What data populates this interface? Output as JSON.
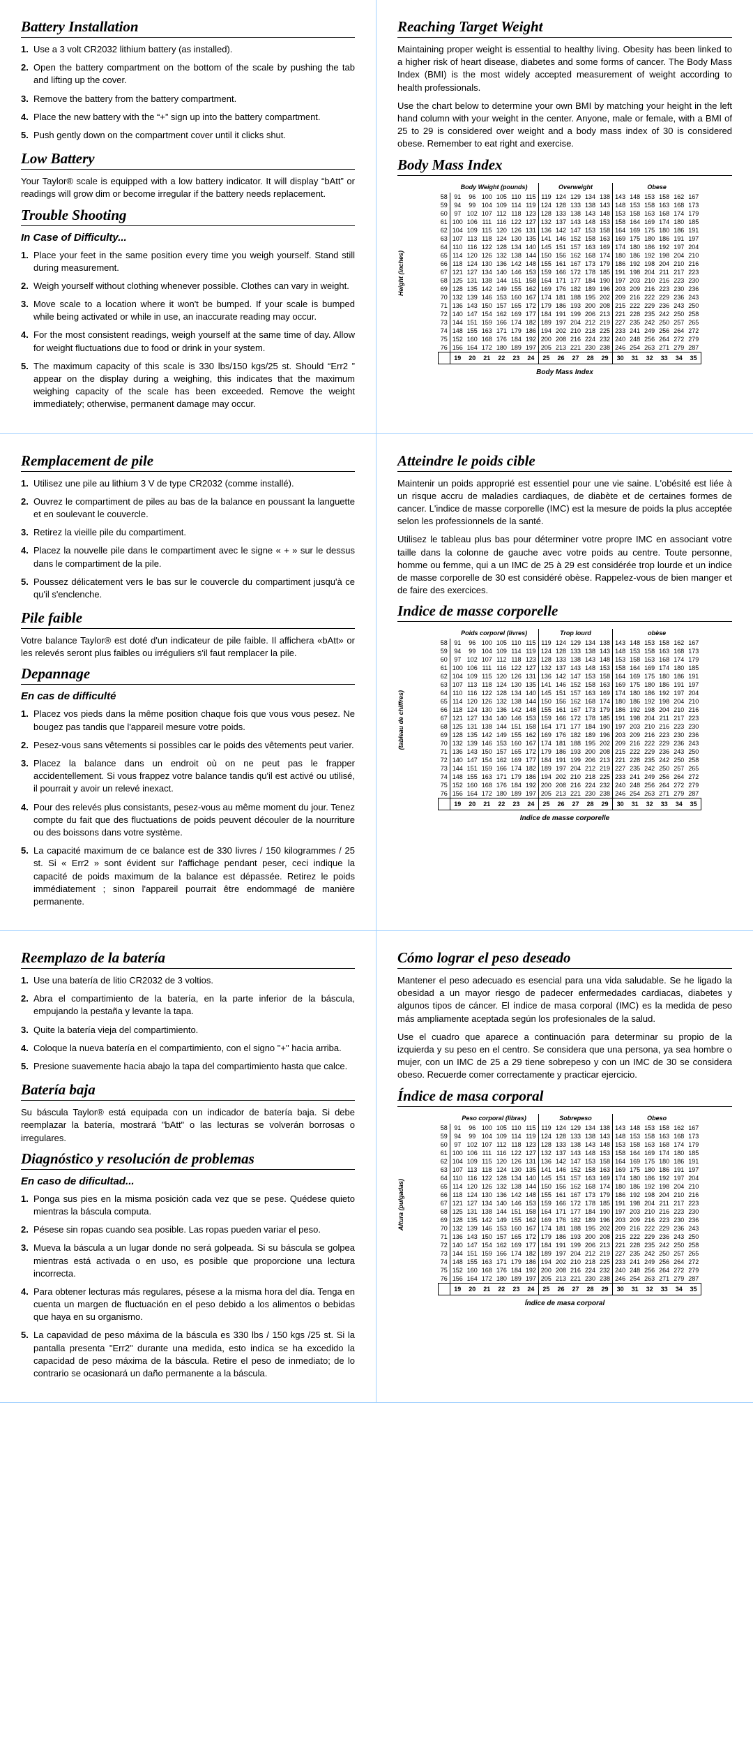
{
  "bmi": {
    "heights": [
      58,
      59,
      60,
      61,
      62,
      63,
      64,
      65,
      66,
      67,
      68,
      69,
      70,
      71,
      72,
      73,
      74,
      75,
      76
    ],
    "bw": [
      [
        91,
        96,
        100,
        105,
        110,
        115
      ],
      [
        94,
        99,
        104,
        109,
        114,
        119
      ],
      [
        97,
        102,
        107,
        112,
        118,
        123
      ],
      [
        100,
        106,
        111,
        116,
        122,
        127
      ],
      [
        104,
        109,
        115,
        120,
        126,
        131
      ],
      [
        107,
        113,
        118,
        124,
        130,
        135
      ],
      [
        110,
        116,
        122,
        128,
        134,
        140
      ],
      [
        114,
        120,
        126,
        132,
        138,
        144
      ],
      [
        118,
        124,
        130,
        136,
        142,
        148
      ],
      [
        121,
        127,
        134,
        140,
        146,
        153
      ],
      [
        125,
        131,
        138,
        144,
        151,
        158
      ],
      [
        128,
        135,
        142,
        149,
        155,
        162
      ],
      [
        132,
        139,
        146,
        153,
        160,
        167
      ],
      [
        136,
        143,
        150,
        157,
        165,
        172
      ],
      [
        140,
        147,
        154,
        162,
        169,
        177
      ],
      [
        144,
        151,
        159,
        166,
        174,
        182
      ],
      [
        148,
        155,
        163,
        171,
        179,
        186
      ],
      [
        152,
        160,
        168,
        176,
        184,
        192
      ],
      [
        156,
        164,
        172,
        180,
        189,
        197
      ]
    ],
    "ow": [
      [
        119,
        124,
        129,
        134,
        138
      ],
      [
        124,
        128,
        133,
        138,
        143
      ],
      [
        128,
        133,
        138,
        143,
        148
      ],
      [
        132,
        137,
        143,
        148,
        153
      ],
      [
        136,
        142,
        147,
        153,
        158
      ],
      [
        141,
        146,
        152,
        158,
        163
      ],
      [
        145,
        151,
        157,
        163,
        169
      ],
      [
        150,
        156,
        162,
        168,
        174
      ],
      [
        155,
        161,
        167,
        173,
        179
      ],
      [
        159,
        166,
        172,
        178,
        185
      ],
      [
        164,
        171,
        177,
        184,
        190
      ],
      [
        169,
        176,
        182,
        189,
        196
      ],
      [
        174,
        181,
        188,
        195,
        202
      ],
      [
        179,
        186,
        193,
        200,
        208
      ],
      [
        184,
        191,
        199,
        206,
        213
      ],
      [
        189,
        197,
        204,
        212,
        219
      ],
      [
        194,
        202,
        210,
        218,
        225
      ],
      [
        200,
        208,
        216,
        224,
        232
      ],
      [
        205,
        213,
        221,
        230,
        238
      ]
    ],
    "ob": [
      [
        143,
        148,
        153,
        158,
        162,
        167
      ],
      [
        148,
        153,
        158,
        163,
        168,
        173
      ],
      [
        153,
        158,
        163,
        168,
        174,
        179
      ],
      [
        158,
        164,
        169,
        174,
        180,
        185
      ],
      [
        164,
        169,
        175,
        180,
        186,
        191
      ],
      [
        169,
        175,
        180,
        186,
        191,
        197
      ],
      [
        174,
        180,
        186,
        192,
        197,
        204
      ],
      [
        180,
        186,
        192,
        198,
        204,
        210
      ],
      [
        186,
        192,
        198,
        204,
        210,
        216
      ],
      [
        191,
        198,
        204,
        211,
        217,
        223
      ],
      [
        197,
        203,
        210,
        216,
        223,
        230
      ],
      [
        203,
        209,
        216,
        223,
        230,
        236
      ],
      [
        209,
        216,
        222,
        229,
        236,
        243
      ],
      [
        215,
        222,
        229,
        236,
        243,
        250
      ],
      [
        221,
        228,
        235,
        242,
        250,
        258
      ],
      [
        227,
        235,
        242,
        250,
        257,
        265
      ],
      [
        233,
        241,
        249,
        256,
        264,
        272
      ],
      [
        240,
        248,
        256,
        264,
        272,
        279
      ],
      [
        246,
        254,
        263,
        271,
        279,
        287
      ]
    ],
    "bmiIdx": [
      19,
      20,
      21,
      22,
      23,
      24,
      25,
      26,
      27,
      28,
      29,
      30,
      31,
      32,
      33,
      34,
      35
    ]
  },
  "en": {
    "battTitle": "Battery Installation",
    "batt": [
      "Use a 3 volt CR2032 lithium battery (as installed).",
      "Open the battery compartment on the bottom of the scale by pushing the tab and lifting up the cover.",
      "Remove the battery from the battery compartment.",
      "Place the new battery with the “+” sign up into the battery compartment.",
      "Push gently down on the compartment cover until it clicks shut."
    ],
    "lowTitle": "Low Battery",
    "lowText": "Your Taylor® scale is equipped with a low battery indicator. It will display “bAtt” or readings will grow dim or become irregular if the battery needs replacement.",
    "tsTitle": "Trouble Shooting",
    "tsSub": "In Case of Difficulty...",
    "ts": [
      "Place your feet in the same position every time you weigh yourself. Stand still during measurement.",
      "Weigh yourself without clothing whenever possible. Clothes can vary in weight.",
      "Move scale to a location where it won't be bumped. If your scale is bumped while being activated or while in use, an inaccurate reading may occur.",
      "For the most consistent readings, weigh yourself at the same time of day. Allow for weight fluctuations due to food or drink in your system.",
      "The maximum capacity of this scale is 330 lbs/150 kgs/25 st. Should “Err2 ” appear on the display during a weighing, this indicates that the maximum weighing capacity of the scale has been exceeded. Remove the weight immediately; otherwise, permanent damage may occur."
    ],
    "reachTitle": "Reaching Target Weight",
    "reachP1": "Maintaining proper weight is essential to healthy living. Obesity has been linked to a higher risk of heart disease, diabetes and some forms of cancer. The Body Mass Index (BMI) is the most widely accepted measurement of weight according to health professionals.",
    "reachP2": "Use the chart below to determine your own BMI by matching your height in the left hand column with your weight in the center. Anyone, male or female, with a BMI of 25 to 29 is considered over weight and a body mass index of 30 is considered obese. Remember to eat right and exercise.",
    "bmiTitle": "Body Mass Index",
    "hBW": "Body Weight (pounds)",
    "hOW": "Overweight",
    "hOB": "Obese",
    "yLabel": "Height (inches)",
    "caption": "Body Mass Index"
  },
  "fr": {
    "battTitle": "Remplacement de pile",
    "batt": [
      "Utilisez une pile au lithium 3 V de type CR2032 (comme installé).",
      "Ouvrez le compartiment de piles au bas de la balance en poussant la languette et en soulevant le couvercle.",
      "Retirez la vieille pile du compartiment.",
      "Placez la nouvelle pile dans le compartiment avec le signe « + » sur le dessus dans le compartiment de la pile.",
      "Poussez délicatement vers le bas sur le couvercle du compartiment jusqu'à ce qu'il s'enclenche."
    ],
    "lowTitle": "Pile faible",
    "lowText": "Votre balance Taylor® est doté d'un indicateur de pile faible. Il affichera «bAtt» or les relevés seront plus faibles ou irréguliers s'il faut remplacer la pile.",
    "tsTitle": "Depannage",
    "tsSub": "En cas de difficulté",
    "ts": [
      "Placez vos pieds dans la même position chaque fois que vous vous pesez. Ne bougez pas tandis que l'appareil mesure votre poids.",
      "Pesez-vous sans vêtements si possibles car le poids des vêtements peut varier.",
      "Placez la balance dans un endroit où on ne peut pas le frapper accidentellement. Si vous frappez votre balance tandis qu'il est activé ou utilisé, il pourrait y avoir un relevé inexact.",
      "Pour des relevés plus consistants, pesez-vous au même moment du jour. Tenez compte du fait que des fluctuations de poids peuvent découler de la nourriture ou des boissons dans votre système.",
      "La capacité maximum de ce balance est de 330 livres / 150 kilogrammes / 25 st. Si « Err2 » sont évident sur l'affichage pendant peser, ceci indique la capacité de poids maximum de la balance est dépassée. Retirez le poids immédiatement ; sinon l'appareil pourrait être endommagé de manière permanente."
    ],
    "reachTitle": "Atteindre le poids cible",
    "reachP1": "Maintenir un poids approprié est essentiel pour une vie saine. L'obésité est liée à un risque accru de maladies cardiaques, de diabète et de certaines formes de cancer. L'indice de masse corporelle (IMC) est la mesure de poids la plus acceptée selon les professionnels de la santé.",
    "reachP2": "Utilisez le tableau plus bas pour déterminer votre propre IMC en associant votre taille dans la colonne de gauche avec votre poids au centre. Toute personne, homme ou femme, qui a un IMC de 25 à 29 est considérée trop lourde et un indice de masse corporelle de 30 est considéré obèse. Rappelez-vous de bien manger et de faire des exercices.",
    "bmiTitle": "Indice de masse corporelle",
    "hBW": "Poids corporel (livres)",
    "hOW": "Trop lourd",
    "hOB": "obèse",
    "yLabel": "(tableau de chiffres)",
    "caption": "Indice de masse corporelle"
  },
  "es": {
    "battTitle": "Reemplazo de la batería",
    "batt": [
      "Use una batería de litio CR2032 de 3 voltios.",
      "Abra el compartimiento de la batería, en la parte inferior de la báscula, empujando la pestaña y levante la tapa.",
      "Quite la batería vieja del compartimiento.",
      "Coloque la nueva batería en el compartimiento, con el signo \"+\" hacia arriba.",
      "Presione suavemente hacia abajo la tapa del compartimiento hasta que calce."
    ],
    "lowTitle": "Batería baja",
    "lowText": "Su báscula Taylor® está equipada con un indicador de batería baja. Si debe reemplazar la batería, mostrará \"bAtt\" o las lecturas se volverán borrosas o irregulares.",
    "tsTitle": "Diagnóstico y resolución de problemas",
    "tsSub": "En caso de dificultad...",
    "ts": [
      "Ponga sus pies en la misma posición cada vez que se pese. Quédese quieto mientras la báscula computa.",
      "Pésese sin ropas cuando sea posible. Las ropas pueden variar el peso.",
      "Mueva la báscula a un lugar donde no será golpeada. Si su báscula se golpea mientras está activada o en uso, es posible que proporcione una lectura incorrecta.",
      "Para obtener lecturas más regulares, pésese a la misma hora del día. Tenga en cuenta un margen de fluctuación en el peso debido a los alimentos o bebidas que haya en su organismo.",
      "La capavidad de peso máxima de la báscula es 330 lbs / 150 kgs /25 st. Si la pantalla presenta \"Err2\" durante una medida, esto indica se ha excedido la capacidad de peso máxima de la báscula. Retire el peso de inmediato; de lo contrario se ocasionará un daño permanente a la báscula."
    ],
    "reachTitle": "Cómo lograr el peso deseado",
    "reachP1": "Mantener el peso adecuado es esencial para una vida saludable. Se he ligado la obesidad a un mayor riesgo de padecer enfermedades cardiacas, diabetes y algunos tipos de cáncer. El índice de masa corporal (IMC) es la medida de peso más ampliamente aceptada según los profesionales de la salud.",
    "reachP2": "Use el cuadro que aparece a continuación para determinar su propio de la izquierda y su peso en el centro. Se considera que una persona, ya sea hombre o mujer, con un IMC de 25 a 29 tiene sobrepeso y con un IMC de 30 se considera obeso. Recuerde comer correctamente y practicar ejercicio.",
    "bmiTitle": "Índice de masa corporal",
    "hBW": "Peso corporal (libras)",
    "hOW": "Sobrepeso",
    "hOB": "Obeso",
    "yLabel": "Altura (pulgadas)",
    "caption": "Índice de masa corporal"
  }
}
